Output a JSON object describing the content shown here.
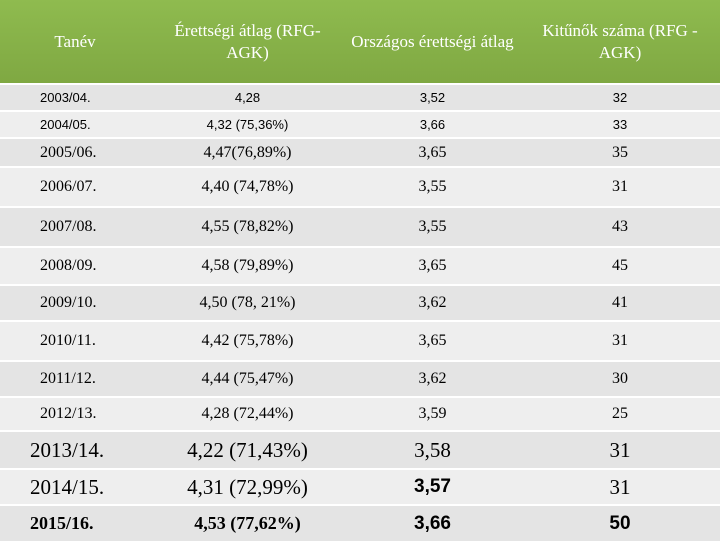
{
  "table": {
    "header": [
      "Tanév",
      "Érettségi átlag (RFG-AGK)",
      "Országos érettségi átlag",
      "Kitűnők száma (RFG -AGK)"
    ],
    "rows": [
      [
        "2003/04.",
        "4,28",
        "3,52",
        "32"
      ],
      [
        "2004/05.",
        "4,32 (75,36%)",
        "3,66",
        "33"
      ],
      [
        "2005/06.",
        "4,47(76,89%)",
        "3,65",
        "35"
      ],
      [
        "2006/07.",
        "4,40 (74,78%)",
        "3,55",
        "31"
      ],
      [
        "2007/08.",
        "4,55 (78,82%)",
        "3,55",
        "43"
      ],
      [
        "2008/09.",
        "4,58 (79,89%)",
        "3,65",
        "45"
      ],
      [
        "2009/10.",
        "4,50 (78, 21%)",
        "3,62",
        "41"
      ],
      [
        "2010/11.",
        "4,42 (75,78%)",
        "3,65",
        "31"
      ],
      [
        "2011/12.",
        "4,44 (75,47%)",
        "3,62",
        "30"
      ],
      [
        "2012/13.",
        "4,28 (72,44%)",
        "3,59",
        "25"
      ],
      [
        "2013/14.",
        "4,22 (71,43%)",
        "3,58",
        "31"
      ],
      [
        "2014/15.",
        "4,31 (72,99%)",
        "3,57",
        "31"
      ],
      [
        "2015/16.",
        "4,53 (77,62%)",
        "3,66",
        "50"
      ]
    ]
  }
}
